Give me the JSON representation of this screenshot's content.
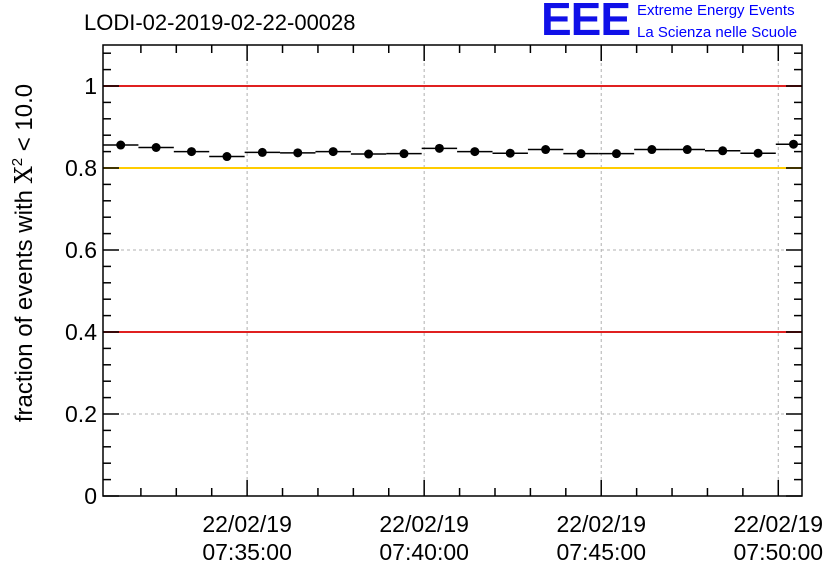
{
  "header": {
    "run_title": "LODI-02-2019-02-22-00028",
    "logo_text": "EEE",
    "logo_line1": "Extreme Energy Events",
    "logo_line2": "La Scienza nelle Scuole"
  },
  "colors": {
    "threshold_red": "#e02020",
    "threshold_yellow": "#ffcc00",
    "marker": "#000000",
    "grid": "#b0b0b0",
    "logo_blue": "#0000ff"
  },
  "chart_data": {
    "type": "scatter",
    "title": "LODI-02-2019-02-22-00028",
    "ylabel_prefix": "fraction of events with ",
    "ylabel_symbol": "X",
    "ylabel_exponent": "2",
    "ylabel_suffix": " < 10.0",
    "xlabel": "",
    "xlim_minutes": [
      -4.07,
      15.67
    ],
    "ylim": [
      0,
      1.1
    ],
    "grid": true,
    "x_major_ticks": [
      {
        "value": 0,
        "date": "22/02/19",
        "time": "07:35:00"
      },
      {
        "value": 5,
        "date": "22/02/19",
        "time": "07:40:00"
      },
      {
        "value": 10,
        "date": "22/02/19",
        "time": "07:45:00"
      },
      {
        "value": 15,
        "date": "22/02/19",
        "time": "07:50:00"
      }
    ],
    "x_minor_ticks": [
      -3,
      -2,
      -1,
      1,
      2,
      3,
      4,
      6,
      7,
      8,
      9,
      11,
      12,
      13,
      14
    ],
    "y_ticks": [
      {
        "value": 0,
        "label": "0"
      },
      {
        "value": 0.2,
        "label": "0.2"
      },
      {
        "value": 0.4,
        "label": "0.4"
      },
      {
        "value": 0.6,
        "label": "0.6"
      },
      {
        "value": 0.8,
        "label": "0.8"
      },
      {
        "value": 1.0,
        "label": "1"
      }
    ],
    "y_minor_step": 0.04,
    "threshold_lines": [
      {
        "value": 1.0,
        "color": "#e02020"
      },
      {
        "value": 0.8,
        "color": "#ffcc00"
      },
      {
        "value": 0.4,
        "color": "#e02020"
      }
    ],
    "bin_width_minutes": 1,
    "points": [
      {
        "x": -3.57,
        "y": 0.856
      },
      {
        "x": -2.57,
        "y": 0.85
      },
      {
        "x": -1.57,
        "y": 0.84
      },
      {
        "x": -0.57,
        "y": 0.828
      },
      {
        "x": 0.43,
        "y": 0.838
      },
      {
        "x": 1.43,
        "y": 0.837
      },
      {
        "x": 2.43,
        "y": 0.84
      },
      {
        "x": 3.43,
        "y": 0.834
      },
      {
        "x": 4.43,
        "y": 0.835
      },
      {
        "x": 5.43,
        "y": 0.848
      },
      {
        "x": 6.43,
        "y": 0.84
      },
      {
        "x": 7.43,
        "y": 0.836
      },
      {
        "x": 8.43,
        "y": 0.845
      },
      {
        "x": 9.43,
        "y": 0.835
      },
      {
        "x": 10.43,
        "y": 0.835
      },
      {
        "x": 11.43,
        "y": 0.845
      },
      {
        "x": 12.43,
        "y": 0.845
      },
      {
        "x": 13.43,
        "y": 0.842
      },
      {
        "x": 14.43,
        "y": 0.836
      },
      {
        "x": 15.43,
        "y": 0.858
      }
    ]
  }
}
